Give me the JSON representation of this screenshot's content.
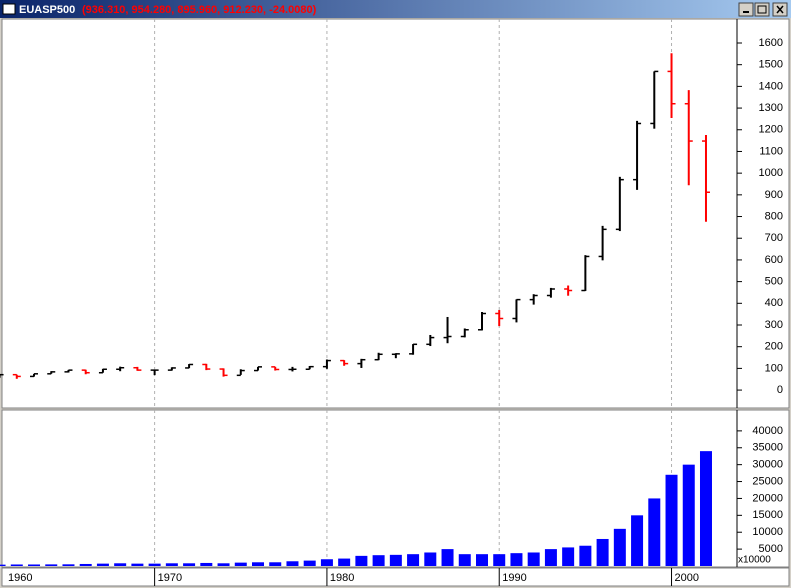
{
  "window": {
    "title": "EUASP500",
    "quote": "(936.310, 954.280, 895.960, 912.230, -24.0080)"
  },
  "chart_data": [
    {
      "type": "ohlc",
      "x": [
        1961,
        1962,
        1963,
        1964,
        1965,
        1966,
        1967,
        1968,
        1969,
        1970,
        1971,
        1972,
        1973,
        1974,
        1975,
        1976,
        1977,
        1978,
        1979,
        1980,
        1981,
        1982,
        1983,
        1984,
        1985,
        1986,
        1987,
        1988,
        1989,
        1990,
        1991,
        1992,
        1993,
        1994,
        1995,
        1996,
        1997,
        1998,
        1999,
        2000,
        2001,
        2002
      ],
      "open": [
        58,
        71,
        63,
        75,
        84,
        92,
        80,
        96,
        103,
        92,
        92,
        102,
        118,
        97,
        68,
        90,
        107,
        95,
        96,
        108,
        136,
        122,
        140,
        165,
        167,
        211,
        242,
        247,
        278,
        353,
        330,
        417,
        436,
        466,
        459,
        616,
        741,
        970,
        1229,
        1469,
        1320,
        1148
      ],
      "high": [
        72,
        71,
        75,
        87,
        93,
        94,
        98,
        108,
        107,
        93,
        105,
        120,
        121,
        100,
        96,
        107,
        107,
        107,
        111,
        141,
        138,
        144,
        172,
        170,
        212,
        254,
        337,
        284,
        360,
        369,
        418,
        442,
        471,
        482,
        622,
        757,
        983,
        1241,
        1469,
        1553,
        1383,
        1176
      ],
      "low": [
        57,
        52,
        62,
        75,
        81,
        73,
        80,
        87,
        89,
        69,
        90,
        101,
        92,
        62,
        70,
        90,
        90,
        86,
        96,
        98,
        112,
        102,
        138,
        147,
        163,
        203,
        216,
        243,
        275,
        295,
        312,
        394,
        426,
        435,
        457,
        598,
        733,
        923,
        1205,
        1254,
        944,
        776
      ],
      "close": [
        71,
        63,
        75,
        84,
        92,
        80,
        96,
        103,
        92,
        92,
        102,
        118,
        97,
        68,
        90,
        107,
        95,
        96,
        108,
        136,
        122,
        140,
        165,
        167,
        211,
        242,
        247,
        278,
        353,
        330,
        417,
        436,
        466,
        459,
        616,
        741,
        970,
        1229,
        1469,
        1320,
        1148,
        912
      ],
      "up_color": "#000000",
      "down_color": "#ff0000",
      "xlim": [
        1961.2,
        2003.8
      ],
      "ylim": [
        -78,
        1706
      ],
      "yticks": [
        0,
        100,
        200,
        300,
        400,
        500,
        600,
        700,
        800,
        900,
        1000,
        1100,
        1200,
        1300,
        1400,
        1500,
        1600
      ],
      "grid": true
    },
    {
      "type": "bar",
      "x": [
        1961,
        1962,
        1963,
        1964,
        1965,
        1966,
        1967,
        1968,
        1969,
        1970,
        1971,
        1972,
        1973,
        1974,
        1975,
        1976,
        1977,
        1978,
        1979,
        1980,
        1981,
        1982,
        1983,
        1984,
        1985,
        1986,
        1987,
        1988,
        1989,
        1990,
        1991,
        1992,
        1993,
        1994,
        1995,
        1996,
        1997,
        1998,
        1999,
        2000,
        2001,
        2002
      ],
      "values": [
        400,
        450,
        450,
        480,
        500,
        600,
        700,
        800,
        700,
        700,
        800,
        800,
        900,
        800,
        1000,
        1100,
        1100,
        1400,
        1600,
        2000,
        2200,
        3000,
        3200,
        3300,
        3500,
        4000,
        5000,
        3500,
        3500,
        3500,
        3800,
        4000,
        5000,
        5500,
        6000,
        8000,
        11000,
        15000,
        20000,
        27000,
        30000,
        34000
      ],
      "color": "#0000ff",
      "xlim": [
        1961.2,
        2003.8
      ],
      "xticks": [
        1960,
        1970,
        1980,
        1990,
        2000
      ],
      "ylim": [
        0,
        45882
      ],
      "yticks": [
        5000,
        10000,
        15000,
        20000,
        25000,
        30000,
        35000,
        40000
      ],
      "y_unit_label": "x10000",
      "grid": true
    }
  ]
}
